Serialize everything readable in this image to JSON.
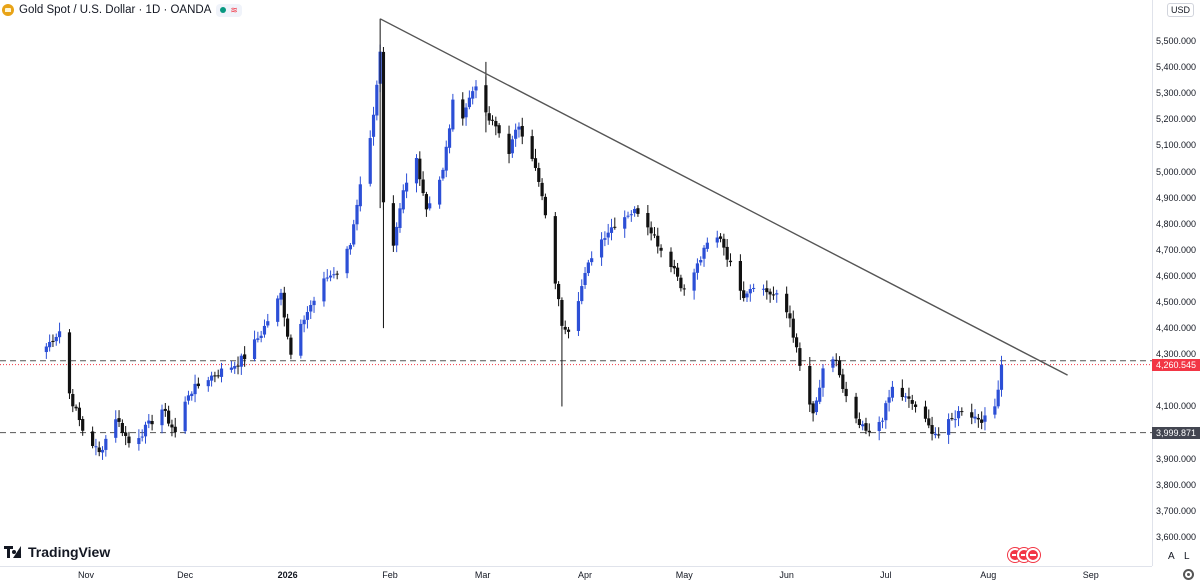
{
  "header": {
    "title": "Gold Spot / U.S. Dollar · 1D · OANDA",
    "symbol_icon": "gold-coin-icon",
    "status_icon": "market-open-icon"
  },
  "axis": {
    "currency": "USD",
    "y_ticks": [
      "5,500.000",
      "5,400.000",
      "5,300.000",
      "5,200.000",
      "5,100.000",
      "5,000.000",
      "4,900.000",
      "4,800.000",
      "4,700.000",
      "4,600.000",
      "4,500.000",
      "4,400.000",
      "4,300.000",
      "4,100.000",
      "3,900.000",
      "3,800.000",
      "3,700.000",
      "3,600.000"
    ],
    "x_ticks": [
      "Nov",
      "Dec",
      "2026",
      "Feb",
      "Mar",
      "Apr",
      "May",
      "Jun",
      "Jul",
      "Aug",
      "Sep"
    ],
    "controls": {
      "auto_label": "A",
      "log_label": "L"
    }
  },
  "labels": {
    "last_price": "4,260.545",
    "support_level": "3,999.871"
  },
  "branding": {
    "name": "TradingView"
  },
  "colors": {
    "up": "#2c4fd6",
    "down": "#111111",
    "last_price": "#f23645",
    "trendline": "#555555",
    "level_line": "#555555"
  },
  "chart_data": {
    "type": "candlestick",
    "title": "Gold Spot / U.S. Dollar · 1D · OANDA",
    "currency": "USD",
    "x_range": [
      "2025-10-20",
      "2026-09-05"
    ],
    "ylim": [
      3540,
      5570
    ],
    "horizontal_levels": [
      4275,
      3999.871
    ],
    "last_price": 4260.545,
    "trendline": {
      "start": [
        "2026-01-29",
        5585
      ],
      "end": [
        "2026-08-25",
        4220
      ]
    },
    "anchors": [
      [
        "2025-10-20",
        4330
      ],
      [
        "2025-10-24",
        4390
      ],
      [
        "2025-10-27",
        4150
      ],
      [
        "2025-10-31",
        4010
      ],
      [
        "2025-11-05",
        3920
      ],
      [
        "2025-11-10",
        4060
      ],
      [
        "2025-11-14",
        3960
      ],
      [
        "2025-11-18",
        4000
      ],
      [
        "2025-11-24",
        4090
      ],
      [
        "2025-11-28",
        4000
      ],
      [
        "2025-12-02",
        4150
      ],
      [
        "2025-12-08",
        4210
      ],
      [
        "2025-12-11",
        4230
      ],
      [
        "2025-12-16",
        4260
      ],
      [
        "2025-12-19",
        4290
      ],
      [
        "2025-12-24",
        4380
      ],
      [
        "2025-12-30",
        4530
      ],
      [
        "2026-01-02",
        4300
      ],
      [
        "2026-01-05",
        4430
      ],
      [
        "2026-01-09",
        4500
      ],
      [
        "2026-01-13",
        4600
      ],
      [
        "2026-01-16",
        4610
      ],
      [
        "2026-01-20",
        4720
      ],
      [
        "2026-01-23",
        4960
      ],
      [
        "2026-01-26",
        5120
      ],
      [
        "2026-01-29",
        5450
      ],
      [
        "2026-01-30",
        4870
      ],
      [
        "2026-02-02",
        4700
      ],
      [
        "2026-02-05",
        4920
      ],
      [
        "2026-02-09",
        5050
      ],
      [
        "2026-02-12",
        4860
      ],
      [
        "2026-02-17",
        5000
      ],
      [
        "2026-02-20",
        5260
      ],
      [
        "2026-02-23",
        5220
      ],
      [
        "2026-02-27",
        5340
      ],
      [
        "2026-03-02",
        5210
      ],
      [
        "2026-03-05",
        5170
      ],
      [
        "2026-03-09",
        5080
      ],
      [
        "2026-03-12",
        5180
      ],
      [
        "2026-03-16",
        5060
      ],
      [
        "2026-03-19",
        4900
      ],
      [
        "2026-03-23",
        4580
      ],
      [
        "2026-03-25",
        4420
      ],
      [
        "2026-03-27",
        4400
      ],
      [
        "2026-03-31",
        4560
      ],
      [
        "2026-04-03",
        4680
      ],
      [
        "2026-04-07",
        4760
      ],
      [
        "2026-04-10",
        4800
      ],
      [
        "2026-04-14",
        4840
      ],
      [
        "2026-04-17",
        4850
      ],
      [
        "2026-04-21",
        4780
      ],
      [
        "2026-04-24",
        4700
      ],
      [
        "2026-04-28",
        4630
      ],
      [
        "2026-05-01",
        4540
      ],
      [
        "2026-05-05",
        4640
      ],
      [
        "2026-05-08",
        4720
      ],
      [
        "2026-05-12",
        4750
      ],
      [
        "2026-05-15",
        4640
      ],
      [
        "2026-05-19",
        4530
      ],
      [
        "2026-05-22",
        4570
      ],
      [
        "2026-05-26",
        4540
      ],
      [
        "2026-05-29",
        4520
      ],
      [
        "2026-06-02",
        4440
      ],
      [
        "2026-06-05",
        4250
      ],
      [
        "2026-06-09",
        4060
      ],
      [
        "2026-06-12",
        4230
      ],
      [
        "2026-06-16",
        4280
      ],
      [
        "2026-06-18",
        4160
      ],
      [
        "2026-06-22",
        4040
      ],
      [
        "2026-06-26",
        3990
      ],
      [
        "2026-06-30",
        4060
      ],
      [
        "2026-07-03",
        4170
      ],
      [
        "2026-07-07",
        4130
      ],
      [
        "2026-07-10",
        4100
      ],
      [
        "2026-07-14",
        4020
      ],
      [
        "2026-07-17",
        3990
      ],
      [
        "2026-07-21",
        4050
      ],
      [
        "2026-07-24",
        4090
      ],
      [
        "2026-07-28",
        4060
      ],
      [
        "2026-07-31",
        4050
      ],
      [
        "2026-08-03",
        4100
      ],
      [
        "2026-08-05",
        4260
      ]
    ]
  }
}
